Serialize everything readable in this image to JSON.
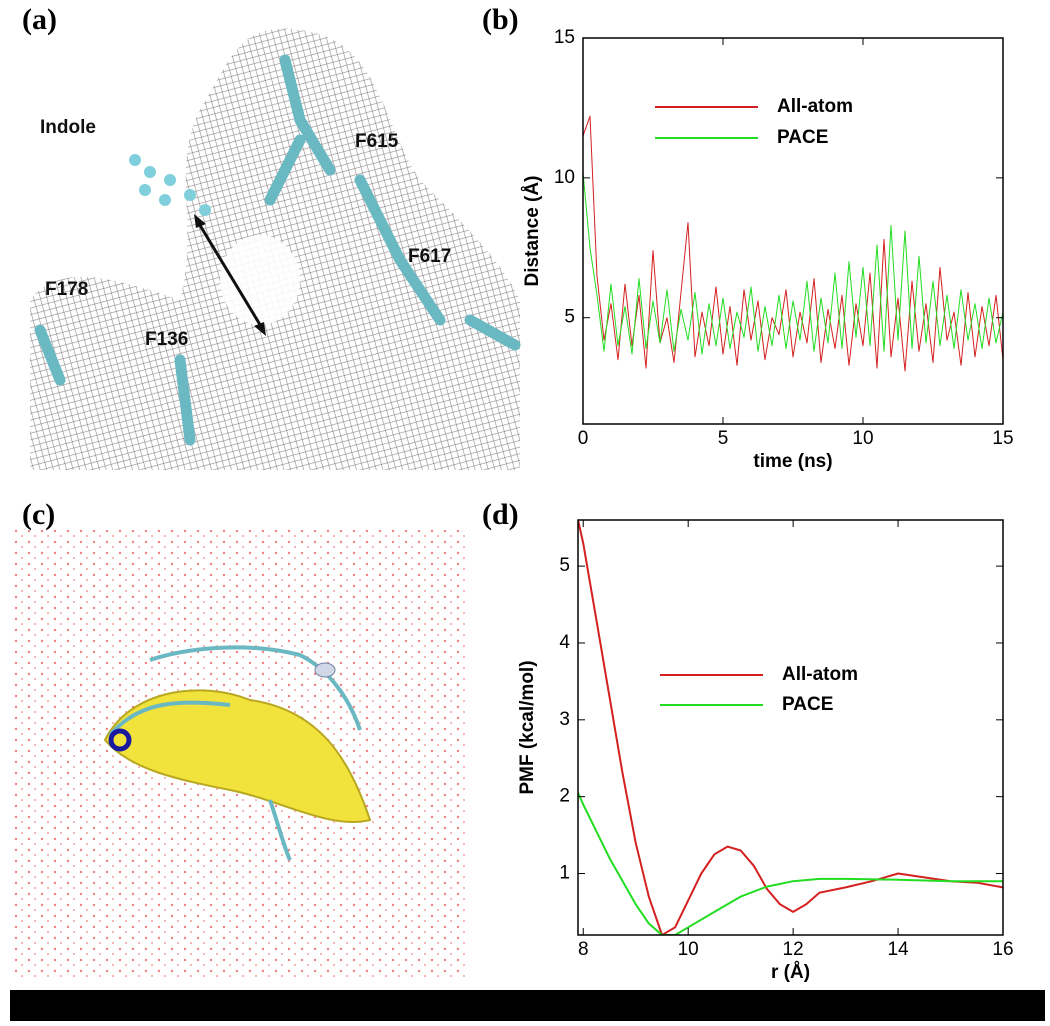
{
  "panel_labels": [
    "(a)",
    "(b)",
    "(c)",
    "(d)"
  ],
  "molecule_labels": [
    "Indole",
    "F615",
    "F617",
    "F178",
    "F136"
  ],
  "chart_data": [
    {
      "type": "line",
      "xlabel": "time (ns)",
      "ylabel": "Distance (Å)",
      "xlim": [
        0,
        15
      ],
      "ylim": [
        1.2,
        15
      ],
      "xticks": [
        0,
        5,
        10,
        15
      ],
      "yticks": [
        5,
        10,
        15
      ],
      "x": [
        0,
        0.25,
        0.5,
        0.75,
        1,
        1.25,
        1.5,
        1.75,
        2,
        2.25,
        2.5,
        2.75,
        3,
        3.25,
        3.5,
        3.75,
        4,
        4.25,
        4.5,
        4.75,
        5,
        5.25,
        5.5,
        5.75,
        6,
        6.25,
        6.5,
        6.75,
        7,
        7.25,
        7.5,
        7.75,
        8,
        8.25,
        8.5,
        8.75,
        9,
        9.25,
        9.5,
        9.75,
        10,
        10.25,
        10.5,
        10.75,
        11,
        11.25,
        11.5,
        11.75,
        12,
        12.25,
        12.5,
        12.75,
        13,
        13.25,
        13.5,
        13.75,
        14,
        14.25,
        14.5,
        14.75,
        15
      ],
      "series": [
        {
          "name": "All-atom",
          "color": "#d42020",
          "values": [
            11.5,
            12.2,
            6.5,
            4.2,
            5.5,
            3.5,
            6.2,
            4.0,
            5.8,
            3.2,
            7.4,
            4.1,
            5.0,
            3.4,
            5.9,
            8.4,
            3.6,
            5.2,
            4.0,
            6.1,
            3.7,
            5.4,
            3.3,
            6.0,
            4.2,
            5.6,
            3.5,
            5.0,
            4.4,
            6.0,
            3.6,
            5.2,
            4.1,
            6.4,
            3.4,
            5.3,
            3.9,
            5.8,
            3.3,
            5.5,
            4.0,
            6.6,
            3.2,
            7.8,
            3.6,
            5.7,
            3.1,
            6.3,
            3.8,
            5.5,
            3.4,
            6.8,
            4.2,
            5.2,
            3.3,
            5.9,
            3.6,
            5.4,
            4.0,
            5.8,
            3.5
          ]
        },
        {
          "name": "PACE",
          "color": "#22dd22",
          "values": [
            10.2,
            7.5,
            5.8,
            3.8,
            6.2,
            4.0,
            5.4,
            3.7,
            6.4,
            3.9,
            5.6,
            4.1,
            6.0,
            3.8,
            5.3,
            4.2,
            5.9,
            3.7,
            5.5,
            4.0,
            5.7,
            3.9,
            5.2,
            4.3,
            6.1,
            3.8,
            5.4,
            4.0,
            5.8,
            3.9,
            5.6,
            4.2,
            6.3,
            3.8,
            5.7,
            4.1,
            6.6,
            3.9,
            7.0,
            4.3,
            6.8,
            4.0,
            7.6,
            3.8,
            8.3,
            4.2,
            8.1,
            3.9,
            7.2,
            4.1,
            6.3,
            4.0,
            5.8,
            3.9,
            6.0,
            4.2,
            5.5,
            3.9,
            5.7,
            4.1,
            5.2
          ]
        }
      ]
    },
    {
      "type": "line",
      "xlabel": "r (Å)",
      "ylabel": "PMF (kcal/mol)",
      "xlim": [
        7.9,
        16
      ],
      "ylim": [
        0.2,
        5.6
      ],
      "xticks": [
        8,
        10,
        12,
        14,
        16
      ],
      "yticks": [
        1,
        2,
        3,
        4,
        5
      ],
      "series": [
        {
          "name": "All-atom",
          "color": "#d42020",
          "x": [
            7.9,
            8,
            8.25,
            8.5,
            8.75,
            9,
            9.25,
            9.5,
            9.75,
            10,
            10.25,
            10.5,
            10.75,
            11,
            11.25,
            11.5,
            11.75,
            12,
            12.25,
            12.5,
            13,
            13.5,
            14,
            14.5,
            15,
            15.5,
            16
          ],
          "values": [
            5.6,
            5.3,
            4.3,
            3.3,
            2.3,
            1.4,
            0.7,
            0.2,
            0.3,
            0.65,
            1.0,
            1.25,
            1.35,
            1.3,
            1.1,
            0.8,
            0.6,
            0.5,
            0.6,
            0.75,
            0.82,
            0.9,
            1.0,
            0.95,
            0.9,
            0.88,
            0.82
          ]
        },
        {
          "name": "PACE",
          "color": "#22dd22",
          "x": [
            7.9,
            8,
            8.5,
            9,
            9.25,
            9.5,
            9.75,
            10,
            10.5,
            11,
            11.5,
            12,
            12.5,
            13,
            14,
            15,
            16
          ],
          "values": [
            2.05,
            1.9,
            1.2,
            0.6,
            0.35,
            0.2,
            0.2,
            0.3,
            0.5,
            0.7,
            0.83,
            0.9,
            0.93,
            0.93,
            0.92,
            0.9,
            0.9
          ]
        }
      ]
    }
  ]
}
